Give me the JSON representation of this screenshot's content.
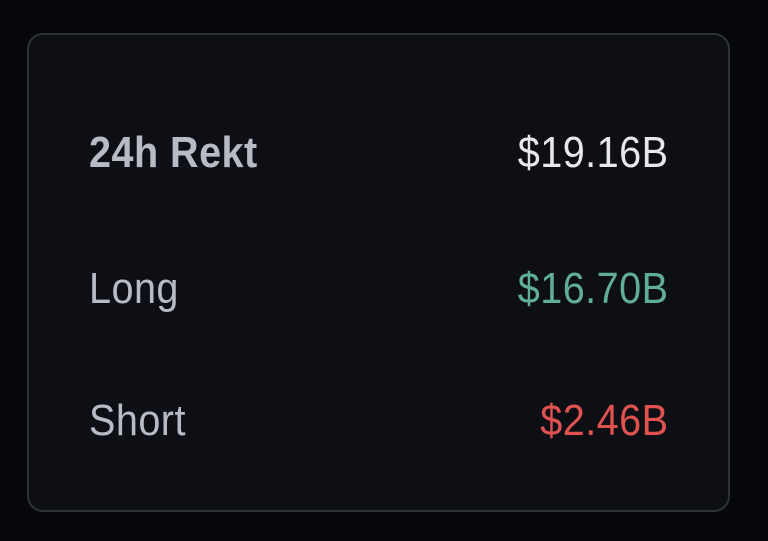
{
  "rows": [
    {
      "label": "24h Rekt",
      "value": "$19.16B",
      "color": "#e6e8ec"
    },
    {
      "label": "Long",
      "value": "$16.70B",
      "color": "#5fae95"
    },
    {
      "label": "Short",
      "value": "$2.46B",
      "color": "#e0524f"
    }
  ]
}
